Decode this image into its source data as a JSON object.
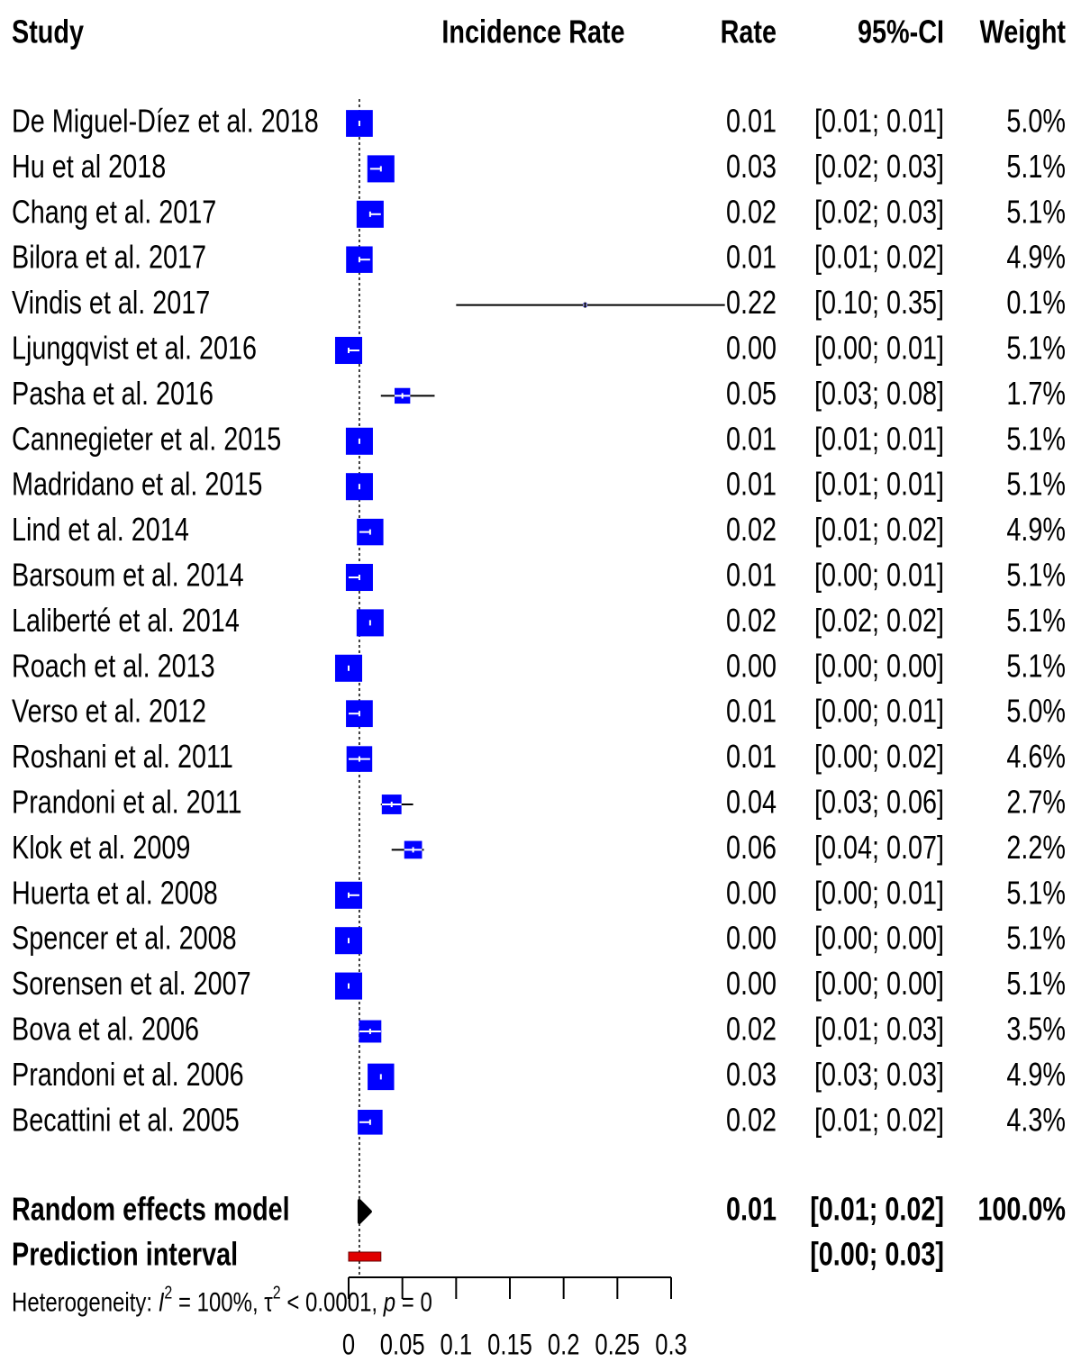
{
  "chart_data": {
    "type": "forest",
    "headers": {
      "study": "Study",
      "plot": "Incidence Rate",
      "rate": "Rate",
      "ci": "95%-CI",
      "weight": "Weight"
    },
    "xlim": [
      0,
      0.3
    ],
    "xticks": [
      0,
      0.05,
      0.1,
      0.15,
      0.2,
      0.25,
      0.3
    ],
    "box_color": "#0000ff",
    "diamond_color": "#000000",
    "prediction_color": "#e00000",
    "studies": [
      {
        "name": "De Miguel-Díez et al. 2018",
        "rate": 0.01,
        "rate_label": "0.01",
        "ci": [
          0.01,
          0.01
        ],
        "ci_label": "[0.01; 0.01]",
        "weight": 5.0,
        "weight_label": "5.0%"
      },
      {
        "name": "Hu et al 2018",
        "rate": 0.03,
        "rate_label": "0.03",
        "ci": [
          0.02,
          0.03
        ],
        "ci_label": "[0.02; 0.03]",
        "weight": 5.1,
        "weight_label": "5.1%"
      },
      {
        "name": "Chang et al. 2017",
        "rate": 0.02,
        "rate_label": "0.02",
        "ci": [
          0.02,
          0.03
        ],
        "ci_label": "[0.02; 0.03]",
        "weight": 5.1,
        "weight_label": "5.1%"
      },
      {
        "name": "Bilora et al. 2017",
        "rate": 0.01,
        "rate_label": "0.01",
        "ci": [
          0.01,
          0.02
        ],
        "ci_label": "[0.01; 0.02]",
        "weight": 4.9,
        "weight_label": "4.9%"
      },
      {
        "name": "Vindis et al. 2017",
        "rate": 0.22,
        "rate_label": "0.22",
        "ci": [
          0.1,
          0.35
        ],
        "ci_label": "[0.10; 0.35]",
        "weight": 0.1,
        "weight_label": "0.1%"
      },
      {
        "name": "Ljungqvist et al. 2016",
        "rate": 0.0,
        "rate_label": "0.00",
        "ci": [
          0.0,
          0.01
        ],
        "ci_label": "[0.00; 0.01]",
        "weight": 5.1,
        "weight_label": "5.1%"
      },
      {
        "name": "Pasha et al. 2016",
        "rate": 0.05,
        "rate_label": "0.05",
        "ci": [
          0.03,
          0.08
        ],
        "ci_label": "[0.03; 0.08]",
        "weight": 1.7,
        "weight_label": "1.7%"
      },
      {
        "name": "Cannegieter et al. 2015",
        "rate": 0.01,
        "rate_label": "0.01",
        "ci": [
          0.01,
          0.01
        ],
        "ci_label": "[0.01; 0.01]",
        "weight": 5.1,
        "weight_label": "5.1%"
      },
      {
        "name": "Madridano et al. 2015",
        "rate": 0.01,
        "rate_label": "0.01",
        "ci": [
          0.01,
          0.01
        ],
        "ci_label": "[0.01; 0.01]",
        "weight": 5.1,
        "weight_label": "5.1%"
      },
      {
        "name": "Lind et al. 2014",
        "rate": 0.02,
        "rate_label": "0.02",
        "ci": [
          0.01,
          0.02
        ],
        "ci_label": "[0.01; 0.02]",
        "weight": 4.9,
        "weight_label": "4.9%"
      },
      {
        "name": "Barsoum et al. 2014",
        "rate": 0.01,
        "rate_label": "0.01",
        "ci": [
          0.0,
          0.01
        ],
        "ci_label": "[0.00; 0.01]",
        "weight": 5.1,
        "weight_label": "5.1%"
      },
      {
        "name": "Laliberté et al. 2014",
        "rate": 0.02,
        "rate_label": "0.02",
        "ci": [
          0.02,
          0.02
        ],
        "ci_label": "[0.02; 0.02]",
        "weight": 5.1,
        "weight_label": "5.1%"
      },
      {
        "name": "Roach et al. 2013",
        "rate": 0.0,
        "rate_label": "0.00",
        "ci": [
          0.0,
          0.0
        ],
        "ci_label": "[0.00; 0.00]",
        "weight": 5.1,
        "weight_label": "5.1%"
      },
      {
        "name": "Verso et al. 2012",
        "rate": 0.01,
        "rate_label": "0.01",
        "ci": [
          0.0,
          0.01
        ],
        "ci_label": "[0.00; 0.01]",
        "weight": 5.0,
        "weight_label": "5.0%"
      },
      {
        "name": "Roshani et al. 2011",
        "rate": 0.01,
        "rate_label": "0.01",
        "ci": [
          0.0,
          0.02
        ],
        "ci_label": "[0.00; 0.02]",
        "weight": 4.6,
        "weight_label": "4.6%"
      },
      {
        "name": "Prandoni et al. 2011",
        "rate": 0.04,
        "rate_label": "0.04",
        "ci": [
          0.03,
          0.06
        ],
        "ci_label": "[0.03; 0.06]",
        "weight": 2.7,
        "weight_label": "2.7%"
      },
      {
        "name": "Klok et al. 2009",
        "rate": 0.06,
        "rate_label": "0.06",
        "ci": [
          0.04,
          0.07
        ],
        "ci_label": "[0.04; 0.07]",
        "weight": 2.2,
        "weight_label": "2.2%"
      },
      {
        "name": "Huerta et al. 2008",
        "rate": 0.0,
        "rate_label": "0.00",
        "ci": [
          0.0,
          0.01
        ],
        "ci_label": "[0.00; 0.01]",
        "weight": 5.1,
        "weight_label": "5.1%"
      },
      {
        "name": "Spencer et al. 2008",
        "rate": 0.0,
        "rate_label": "0.00",
        "ci": [
          0.0,
          0.0
        ],
        "ci_label": "[0.00; 0.00]",
        "weight": 5.1,
        "weight_label": "5.1%"
      },
      {
        "name": "Sorensen et al. 2007",
        "rate": 0.0,
        "rate_label": "0.00",
        "ci": [
          0.0,
          0.0
        ],
        "ci_label": "[0.00; 0.00]",
        "weight": 5.1,
        "weight_label": "5.1%"
      },
      {
        "name": "Bova et al. 2006",
        "rate": 0.02,
        "rate_label": "0.02",
        "ci": [
          0.01,
          0.03
        ],
        "ci_label": "[0.01; 0.03]",
        "weight": 3.5,
        "weight_label": "3.5%"
      },
      {
        "name": "Prandoni et al. 2006",
        "rate": 0.03,
        "rate_label": "0.03",
        "ci": [
          0.03,
          0.03
        ],
        "ci_label": "[0.03; 0.03]",
        "weight": 4.9,
        "weight_label": "4.9%"
      },
      {
        "name": "Becattini et al. 2005",
        "rate": 0.02,
        "rate_label": "0.02",
        "ci": [
          0.01,
          0.02
        ],
        "ci_label": "[0.01; 0.02]",
        "weight": 4.3,
        "weight_label": "4.3%"
      }
    ],
    "random_effects": {
      "name": "Random effects model",
      "rate": 0.01,
      "rate_label": "0.01",
      "ci": [
        0.01,
        0.02
      ],
      "ci_label": "[0.01; 0.02]",
      "weight": 100.0,
      "weight_label": "100.0%"
    },
    "prediction": {
      "name": "Prediction interval",
      "ci": [
        0.0,
        0.03
      ],
      "ci_label": "[0.00; 0.03]"
    },
    "heterogeneity": [
      "Heterogeneity: ",
      "I",
      "2",
      " = 100%, τ",
      "2",
      " < 0.0001, ",
      "p",
      " = 0"
    ]
  }
}
